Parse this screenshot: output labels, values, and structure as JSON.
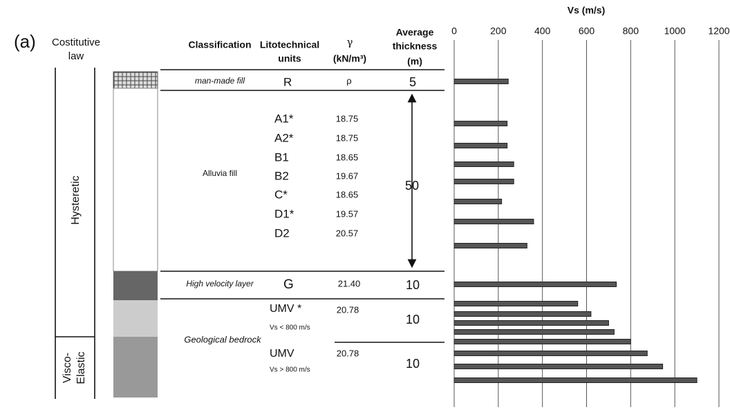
{
  "panel_label": "(a)",
  "header": {
    "constitutive_law": [
      "Costitutive",
      "law"
    ],
    "classification": "Classification",
    "units": [
      "Litotechnical",
      "units"
    ],
    "gamma": [
      "γ",
      "(kN/m³)"
    ],
    "thickness": [
      "Average",
      "thickness",
      "(m)"
    ]
  },
  "constitutive_laws": [
    [
      "Hysteretic"
    ],
    [
      "Visco-",
      "Elastic"
    ]
  ],
  "classes": [
    "man-made fill",
    "Alluvia fill",
    "High velocity layer",
    "Geological bedrock"
  ],
  "units": [
    {
      "name": "R",
      "gamma": "ρ"
    },
    {
      "name": "A1*",
      "gamma": "18.75"
    },
    {
      "name": "A2*",
      "gamma": "18.75"
    },
    {
      "name": "B1",
      "gamma": "18.65"
    },
    {
      "name": "B2",
      "gamma": "19.67"
    },
    {
      "name": "C*",
      "gamma": "18.65"
    },
    {
      "name": "D1*",
      "gamma": "19.57"
    },
    {
      "name": "D2",
      "gamma": "20.57"
    },
    {
      "name": "G",
      "gamma": "21.40"
    },
    {
      "name": "UMV *",
      "note": "Vs < 800 m/s",
      "gamma": "20.78"
    },
    {
      "name": "UMV",
      "note": "Vs > 800 m/s",
      "gamma": "20.78"
    }
  ],
  "thickness": [
    5,
    50,
    10,
    10,
    10
  ],
  "chart_data": {
    "type": "bar",
    "orientation": "horizontal",
    "x_label": "Vs (m/s)",
    "categories": [
      null,
      null,
      null,
      null,
      null,
      null,
      null,
      null,
      null,
      null,
      null,
      null,
      null,
      null,
      null,
      null,
      null
    ],
    "values": [
      245,
      240,
      240,
      270,
      270,
      215,
      360,
      330,
      735,
      560,
      620,
      700,
      725,
      800,
      875,
      945,
      1100
    ],
    "color": "#555555",
    "xlim": [
      0,
      1200
    ],
    "xticks": [
      0,
      200,
      400,
      600,
      800,
      1000,
      1200
    ],
    "grid": true
  }
}
